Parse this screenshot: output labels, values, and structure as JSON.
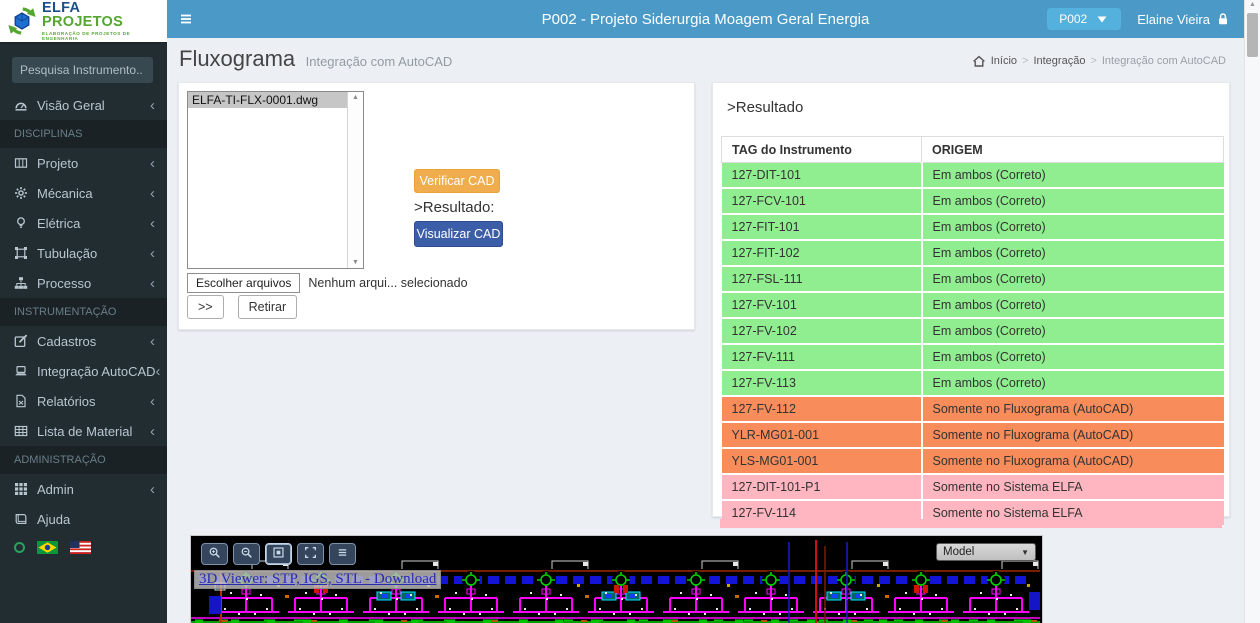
{
  "colors": {
    "topbar": "#4a99c7",
    "project_button": "#54b0dd",
    "sidebar_bg": "#222d32",
    "content_bg": "#ecf0f5",
    "row_green": "#90ee90",
    "row_orange": "#f88c5a",
    "row_pink": "#ffb6c1",
    "verify_button": "#f0ad4e",
    "view_button": "#3c5ea8",
    "logo_blue": "#1a4f8a",
    "logo_green": "#55a630"
  },
  "logo": {
    "name_primary": "ELFA",
    "name_secondary": "PROJETOS",
    "subtitle": "ELABORAÇÃO DE PROJETOS DE ENGENHARIA"
  },
  "topbar": {
    "title": "P002 - Projeto Siderurgia Moagem Geral Energia",
    "project_selector": {
      "label": "P002"
    },
    "user": {
      "name": "Elaine Vieira"
    }
  },
  "sidebar": {
    "search_placeholder": "Pesquisa Instrumento..",
    "entries": [
      {
        "type": "item",
        "label": "Visão Geral",
        "icon": "dashboard",
        "expandable": true
      },
      {
        "type": "header",
        "label": "DISCIPLINAS"
      },
      {
        "type": "item",
        "label": "Projeto",
        "icon": "map",
        "expandable": true
      },
      {
        "type": "item",
        "label": "Mécanica",
        "icon": "gear",
        "expandable": true
      },
      {
        "type": "item",
        "label": "Elétrica",
        "icon": "bulb",
        "expandable": true
      },
      {
        "type": "item",
        "label": "Tubulação",
        "icon": "pipes",
        "expandable": true
      },
      {
        "type": "item",
        "label": "Processo",
        "icon": "sitemap",
        "expandable": true
      },
      {
        "type": "header",
        "label": "INSTRUMENTAÇÃO"
      },
      {
        "type": "item",
        "label": "Cadastros",
        "icon": "edit",
        "expandable": true
      },
      {
        "type": "item",
        "label": "Integração AutoCAD",
        "icon": "laptop",
        "expandable": true
      },
      {
        "type": "item",
        "label": "Relatórios",
        "icon": "file",
        "expandable": true
      },
      {
        "type": "item",
        "label": "Lista de Material",
        "icon": "table",
        "expandable": true
      },
      {
        "type": "header",
        "label": "ADMINISTRAÇÃO"
      },
      {
        "type": "item",
        "label": "Admin",
        "icon": "grid",
        "expandable": true
      },
      {
        "type": "item",
        "label": "Ajuda",
        "icon": "book",
        "expandable": false
      }
    ]
  },
  "page": {
    "title": "Fluxograma",
    "subtitle": "Integração com AutoCAD",
    "breadcrumb": [
      "Início",
      "Integração",
      "Integração com AutoCAD"
    ]
  },
  "upload_panel": {
    "files": [
      {
        "name": "ELFA-TI-FLX-0001.dwg",
        "state": "selected"
      }
    ],
    "choose_files_button": "Escolher arquivos",
    "file_status": "Nenhum arqui... selecionado",
    "transfer_button": ">>",
    "remove_button": "Retirar",
    "verify_button": "Verificar CAD",
    "result_label": ">Resultado:",
    "view_button": "Visualizar CAD"
  },
  "result_panel": {
    "title": ">Resultado",
    "table": {
      "columns": [
        "TAG do Instrumento",
        "ORIGEM"
      ],
      "rows": [
        {
          "tag": "127-DIT-101",
          "origem": "Em ambos (Correto)",
          "status": "green"
        },
        {
          "tag": "127-FCV-101",
          "origem": "Em ambos (Correto)",
          "status": "green"
        },
        {
          "tag": "127-FIT-101",
          "origem": "Em ambos (Correto)",
          "status": "green"
        },
        {
          "tag": "127-FIT-102",
          "origem": "Em ambos (Correto)",
          "status": "green"
        },
        {
          "tag": "127-FSL-111",
          "origem": "Em ambos (Correto)",
          "status": "green"
        },
        {
          "tag": "127-FV-101",
          "origem": "Em ambos (Correto)",
          "status": "green"
        },
        {
          "tag": "127-FV-102",
          "origem": "Em ambos (Correto)",
          "status": "green"
        },
        {
          "tag": "127-FV-111",
          "origem": "Em ambos (Correto)",
          "status": "green"
        },
        {
          "tag": "127-FV-113",
          "origem": "Em ambos (Correto)",
          "status": "green"
        },
        {
          "tag": "127-FV-112",
          "origem": "Somente no Fluxograma (AutoCAD)",
          "status": "orange"
        },
        {
          "tag": "YLR-MG01-001",
          "origem": "Somente no Fluxograma (AutoCAD)",
          "status": "orange"
        },
        {
          "tag": "YLS-MG01-001",
          "origem": "Somente no Fluxograma (AutoCAD)",
          "status": "orange"
        },
        {
          "tag": "127-DIT-101-P1",
          "origem": "Somente no Sistema ELFA",
          "status": "pink"
        },
        {
          "tag": "127-FV-114",
          "origem": "Somente no Sistema ELFA",
          "status": "pink"
        }
      ]
    }
  },
  "viewer": {
    "toolbar": [
      {
        "icon": "zoom-in"
      },
      {
        "icon": "zoom-out"
      },
      {
        "icon": "fit",
        "state": "active"
      },
      {
        "icon": "expand"
      },
      {
        "icon": "layers"
      }
    ],
    "link": "3D Viewer: STP, IGS, STL - Download",
    "model_select": "Model"
  }
}
